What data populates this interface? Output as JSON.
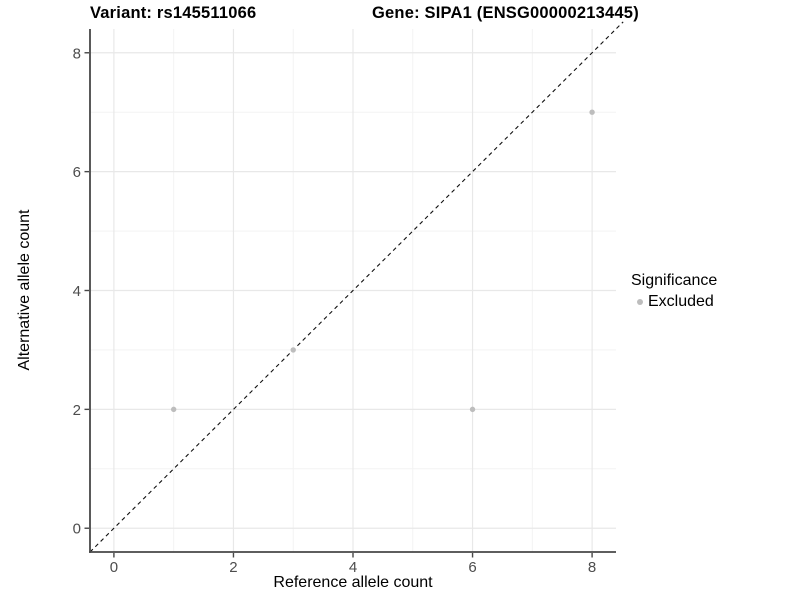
{
  "chart_data": {
    "type": "scatter",
    "title_left": "Variant: rs145511066",
    "title_right": "Gene: SIPA1 (ENSG00000213445)",
    "xlabel": "Reference allele count",
    "ylabel": "Alternative allele count",
    "xlim": [
      -0.4,
      8.4
    ],
    "ylim": [
      -0.4,
      8.4
    ],
    "x_ticks": [
      0,
      2,
      4,
      6,
      8
    ],
    "y_ticks": [
      0,
      2,
      4,
      6,
      8
    ],
    "x_minor_breaks": [
      1,
      3,
      5,
      7
    ],
    "y_minor_breaks": [
      1,
      3,
      5,
      7
    ],
    "grid": true,
    "reference_line": {
      "type": "identity",
      "style": "dashed",
      "color": "#111111"
    },
    "series": [
      {
        "name": "Excluded",
        "color": "#bdbdbd",
        "points": [
          {
            "x": 1,
            "y": 2
          },
          {
            "x": 3,
            "y": 3
          },
          {
            "x": 6,
            "y": 2
          },
          {
            "x": 8,
            "y": 7
          }
        ]
      }
    ],
    "legend": {
      "title": "Significance",
      "position": "right",
      "items": [
        {
          "label": "Excluded",
          "color": "#bdbdbd"
        }
      ]
    },
    "colors": {
      "background": "#ffffff",
      "grid_major": "#e8e8e8",
      "grid_minor": "#f3f3f3",
      "axis_line": "#474747",
      "tick_label": "#4d4d4d",
      "point": "#bdbdbd"
    }
  }
}
